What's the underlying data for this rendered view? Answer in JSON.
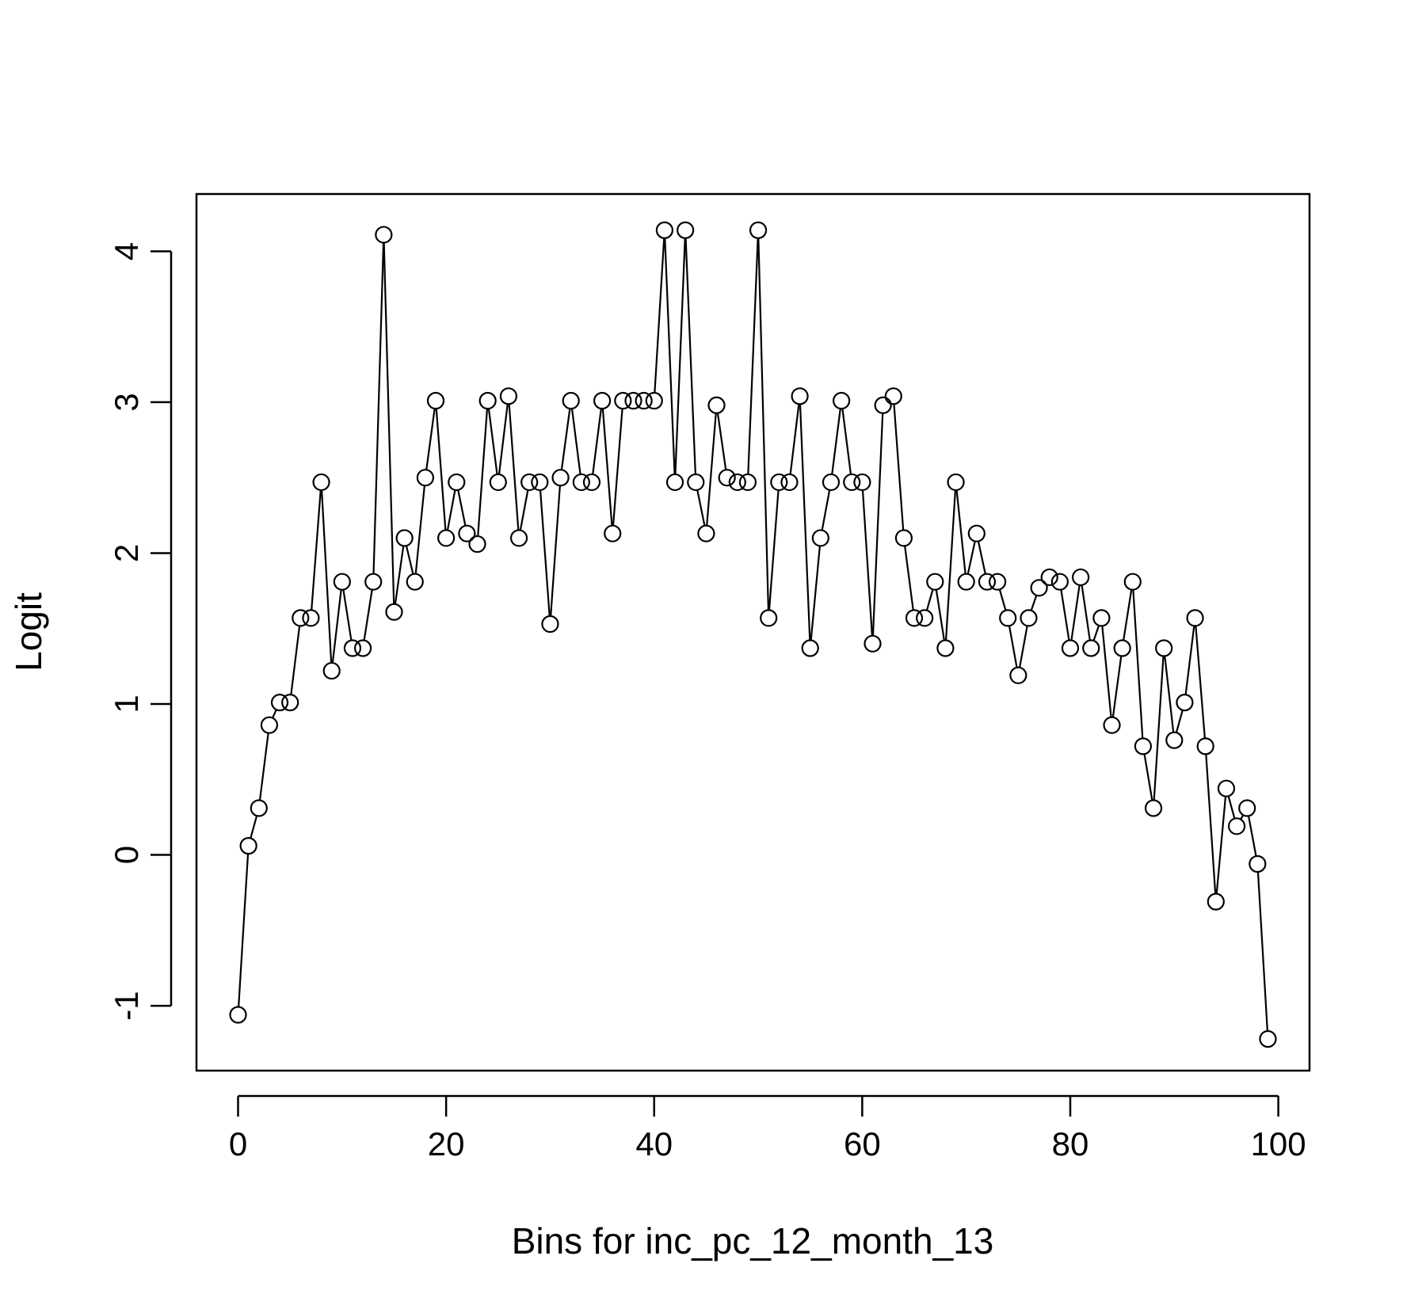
{
  "chart_data": {
    "type": "line",
    "markers": "open-circle",
    "xlabel": "Bins for  inc_pc_12_month_13",
    "ylabel": "Logit",
    "xlim": [
      -4,
      103
    ],
    "ylim": [
      -1.43,
      4.38
    ],
    "xticks": [
      0,
      20,
      40,
      60,
      80,
      100
    ],
    "yticks": [
      -1,
      0,
      1,
      2,
      3,
      4
    ],
    "grid": false,
    "legend": "none",
    "colors": {
      "line": "#000000",
      "marker": "#000000",
      "background": "#ffffff"
    },
    "series": [
      {
        "x": [
          0,
          1,
          2,
          3,
          4,
          5,
          6,
          7,
          8,
          9,
          10,
          11,
          12,
          13,
          14,
          15,
          16,
          17,
          18,
          19,
          20,
          21,
          22,
          23,
          24,
          25,
          26,
          27,
          28,
          29,
          30,
          31,
          32,
          33,
          34,
          35,
          36,
          37,
          38,
          39,
          40,
          41,
          42,
          43,
          44,
          45,
          46,
          47,
          48,
          49,
          50,
          51,
          52,
          53,
          54,
          55,
          56,
          57,
          58,
          59,
          60,
          61,
          62,
          63,
          64,
          65,
          66,
          67,
          68,
          69,
          70,
          71,
          72,
          73,
          74,
          75,
          76,
          77,
          78,
          79,
          80,
          81,
          82,
          83,
          84,
          85,
          86,
          87,
          88,
          89,
          90,
          91,
          92,
          93,
          94,
          95,
          96,
          97,
          98,
          99
        ],
        "y": [
          -1.06,
          0.06,
          0.31,
          0.86,
          1.01,
          1.01,
          1.57,
          1.57,
          2.47,
          1.22,
          1.81,
          1.37,
          1.37,
          1.81,
          4.11,
          1.61,
          2.1,
          1.81,
          2.5,
          3.01,
          2.1,
          2.47,
          2.13,
          2.06,
          3.01,
          2.47,
          3.04,
          2.1,
          2.47,
          2.47,
          1.53,
          2.5,
          3.01,
          2.47,
          2.47,
          3.01,
          2.13,
          3.01,
          3.01,
          3.01,
          3.01,
          4.14,
          2.47,
          4.14,
          2.47,
          2.13,
          2.98,
          2.5,
          2.47,
          2.47,
          4.14,
          1.57,
          2.47,
          2.47,
          3.04,
          1.37,
          2.1,
          2.47,
          3.01,
          2.47,
          2.47,
          1.4,
          2.98,
          3.04,
          2.1,
          1.57,
          1.57,
          1.81,
          1.37,
          2.47,
          1.81,
          2.13,
          1.81,
          1.81,
          1.57,
          1.19,
          1.57,
          1.77,
          1.84,
          1.81,
          1.37,
          1.84,
          1.37,
          1.57,
          0.86,
          1.37,
          1.81,
          0.72,
          0.31,
          1.37,
          0.76,
          1.01,
          1.57,
          0.72,
          -0.31,
          0.44,
          0.19,
          0.31,
          -0.06,
          -1.22
        ]
      }
    ]
  }
}
